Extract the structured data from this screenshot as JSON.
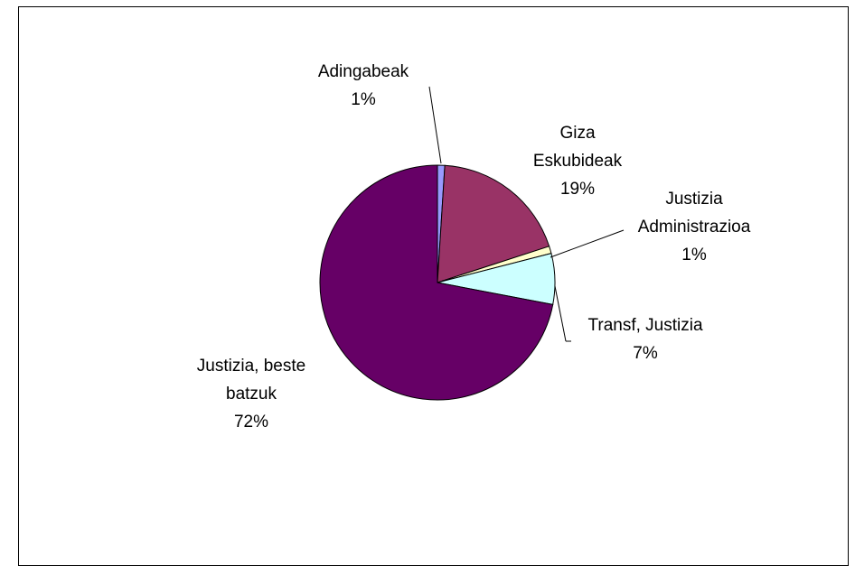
{
  "chart_data": {
    "type": "pie",
    "categories": [
      "Adingabeak",
      "Giza Eskubideak",
      "Justizia Administrazioa",
      "Transf, Justizia",
      "Justizia, beste batzuk"
    ],
    "values": [
      1,
      19,
      1,
      7,
      72
    ],
    "percent_labels": [
      "1%",
      "19%",
      "1%",
      "7%",
      "72%"
    ],
    "label_lines": [
      [
        "Adingabeak"
      ],
      [
        "Giza",
        "Eskubideak"
      ],
      [
        "Justizia",
        "Administrazioa"
      ],
      [
        "Transf, Justizia"
      ],
      [
        "Justizia, beste",
        "batzuk"
      ]
    ],
    "colors": [
      "#9999ff",
      "#993366",
      "#ffffcc",
      "#ccffff",
      "#660066"
    ],
    "start_angle": "12 o'clock, clockwise",
    "legend": "none",
    "data_labels": "category name and percentage outside slices with leader lines"
  }
}
